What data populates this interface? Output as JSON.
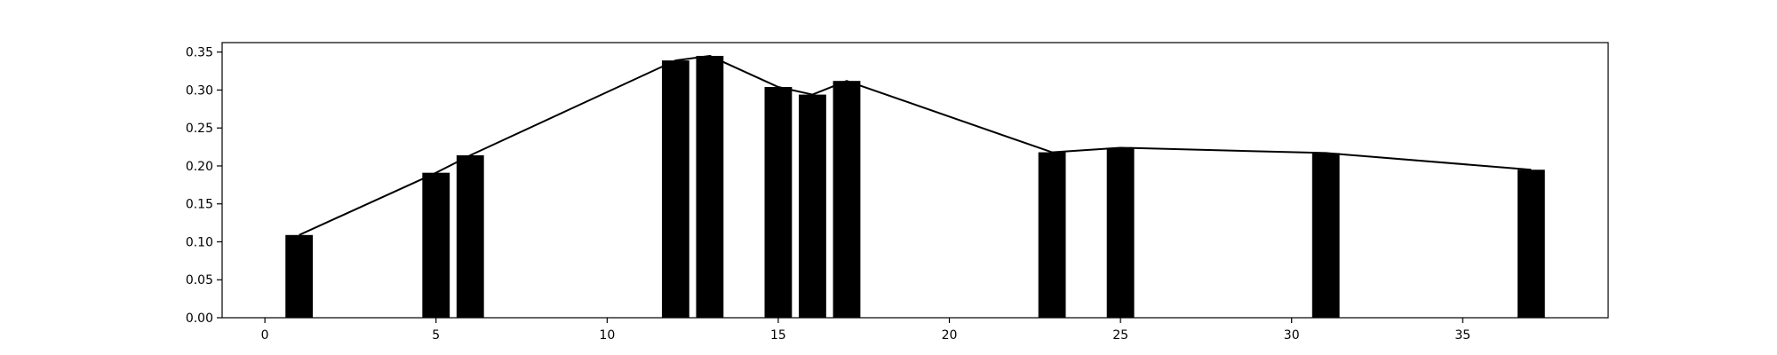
{
  "chart_data": {
    "type": "bar",
    "title": "",
    "xlabel": "",
    "ylabel": "",
    "xlim": [
      -1.25,
      39.25
    ],
    "ylim": [
      0,
      0.3625
    ],
    "x_ticks": [
      0,
      5,
      10,
      15,
      20,
      25,
      30,
      35
    ],
    "y_ticks": [
      0.0,
      0.05,
      0.1,
      0.15,
      0.2,
      0.25,
      0.3,
      0.35
    ],
    "x_tick_labels": [
      "0",
      "5",
      "10",
      "15",
      "20",
      "25",
      "30",
      "35"
    ],
    "y_tick_labels": [
      "0.00",
      "0.05",
      "0.10",
      "0.15",
      "0.20",
      "0.25",
      "0.30",
      "0.35"
    ],
    "grid": false,
    "bar_width": 0.8,
    "series": [
      {
        "type": "bar",
        "color": "#000000",
        "x": [
          1,
          5,
          6,
          12,
          13,
          15,
          16,
          17,
          23,
          25,
          31,
          37
        ],
        "values": [
          0.109,
          0.191,
          0.214,
          0.339,
          0.345,
          0.304,
          0.294,
          0.312,
          0.218,
          0.224,
          0.217,
          0.195
        ]
      },
      {
        "type": "line",
        "color": "#000000",
        "x": [
          1,
          5,
          6,
          12,
          13,
          15,
          16,
          17,
          23,
          25,
          31,
          37
        ],
        "values": [
          0.109,
          0.191,
          0.214,
          0.339,
          0.345,
          0.304,
          0.294,
          0.312,
          0.218,
          0.224,
          0.217,
          0.195
        ]
      }
    ]
  }
}
